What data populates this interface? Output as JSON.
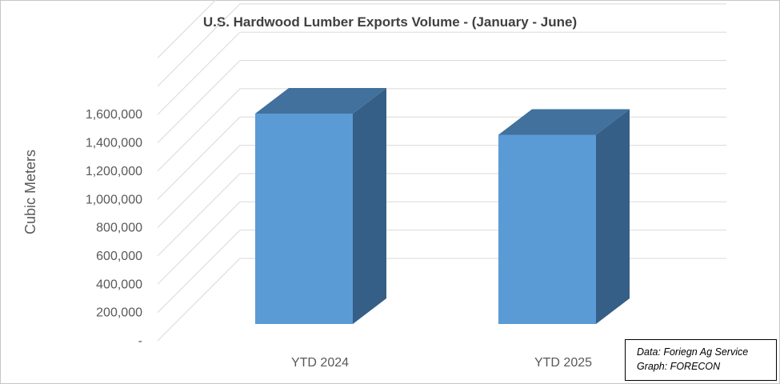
{
  "chart_data": {
    "type": "bar",
    "title": "U.S. Hardwood Lumber Exports Volume - (January - June)",
    "ylabel": "Cubic Meters",
    "xlabel": "",
    "categories": [
      "YTD 2024",
      "YTD 2025"
    ],
    "values": [
      1490000,
      1340000
    ],
    "ylim": [
      0,
      2000000
    ],
    "yticks": [
      0,
      200000,
      400000,
      600000,
      800000,
      1000000,
      1200000,
      1400000,
      1600000
    ],
    "ytick_labels": [
      "-",
      "200,000",
      "400,000",
      "600,000",
      "800,000",
      "1,000,000",
      "1,200,000",
      "1,400,000",
      "1,600,000"
    ],
    "style": "3d-column",
    "grid": true,
    "colors": {
      "front": "#5b9bd5",
      "top": "#41719c",
      "side": "#355f86",
      "grid": "#d9d9d9"
    }
  },
  "source": {
    "line1": "Data: Foriegn Ag Service",
    "line2": "Graph: FORECON"
  }
}
